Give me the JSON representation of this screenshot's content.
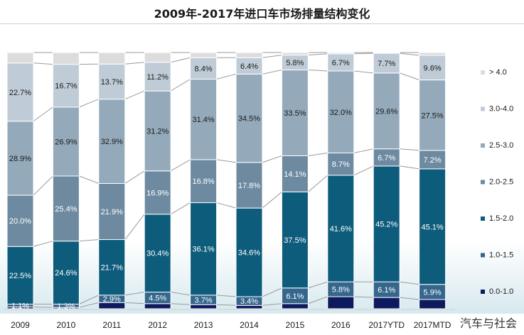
{
  "chart_data": {
    "type": "bar",
    "stacked": true,
    "percent": true,
    "title": "2009年-2017年进口车市场排量结构变化",
    "categories": [
      "2009",
      "2010",
      "2011",
      "2012",
      "2013",
      "2014",
      "2015",
      "2016",
      "2017YTD",
      "2017MTD"
    ],
    "series": [
      {
        "name": "0.0-1.0",
        "color": "#0d1a5e",
        "values": [
          0.7,
          0.5,
          2.4,
          2.0,
          1.6,
          1.3,
          2.0,
          4.7,
          4.4,
          3.6
        ]
      },
      {
        "name": "1.0-1.5",
        "color": "#35668c",
        "values": [
          1.1,
          1.3,
          2.9,
          4.5,
          3.7,
          3.4,
          6.1,
          5.8,
          6.1,
          5.9
        ]
      },
      {
        "name": "1.5-2.0",
        "color": "#0e5c7c",
        "values": [
          22.5,
          24.6,
          21.7,
          30.4,
          36.1,
          34.6,
          37.5,
          41.6,
          45.2,
          45.1
        ]
      },
      {
        "name": "2.0-2.5",
        "color": "#6d8aa0",
        "values": [
          20.0,
          25.4,
          21.9,
          16.9,
          16.8,
          17.8,
          14.1,
          8.7,
          6.7,
          7.2
        ]
      },
      {
        "name": "2.5-3.0",
        "color": "#94aabb",
        "values": [
          28.9,
          26.9,
          32.9,
          31.2,
          31.4,
          34.5,
          33.5,
          32.0,
          29.6,
          27.5
        ]
      },
      {
        "name": "3.0-4.0",
        "color": "#bfcbd6",
        "values": [
          22.7,
          16.7,
          13.7,
          11.2,
          8.4,
          6.4,
          5.8,
          6.7,
          7.7,
          9.6
        ]
      },
      {
        "name": "> 4.0",
        "color": "#dcdcdc",
        "values": [
          4.1,
          4.6,
          4.5,
          3.8,
          2.0,
          2.0,
          1.0,
          0.5,
          0.3,
          1.1
        ]
      }
    ],
    "data_labels": [
      [
        null,
        null,
        null,
        null,
        null,
        null,
        null,
        null,
        null,
        null
      ],
      [
        "1.1%",
        "1.3%",
        "2.9%",
        "4.5%",
        "3.7%",
        "3.4%",
        "6.1%",
        "5.8%",
        "6.1%",
        "5.9%"
      ],
      [
        "22.5%",
        "24.6%",
        "21.7%",
        "30.4%",
        "36.1%",
        "34.6%",
        "37.5%",
        "41.6%",
        "45.2%",
        "45.1%"
      ],
      [
        "20.0%",
        "25.4%",
        "21.9%",
        "16.9%",
        "16.8%",
        "17.8%",
        "14.1%",
        "8.7%",
        "6.7%",
        "7.2%"
      ],
      [
        "28.9%",
        "26.9%",
        "32.9%",
        "31.2%",
        "31.4%",
        "34.5%",
        "33.5%",
        "32.0%",
        "29.6%",
        "27.5%"
      ],
      [
        "22.7%",
        "16.7%",
        "13.7%",
        "11.2%",
        "8.4%",
        "6.4%",
        "5.8%",
        "6.7%",
        "7.7%",
        "9.6%"
      ],
      [
        null,
        null,
        null,
        null,
        null,
        null,
        null,
        null,
        null,
        null
      ]
    ],
    "legend_order": [
      "> 4.0",
      "3.0-4.0",
      "2.5-3.0",
      "2.0-2.5",
      "1.5-2.0",
      "1.0-1.5",
      "0.0-1.0"
    ],
    "legend_position": "right",
    "ylim": [
      0,
      100
    ],
    "grid": false,
    "series_lines": true
  },
  "watermark": "汽车与社会"
}
